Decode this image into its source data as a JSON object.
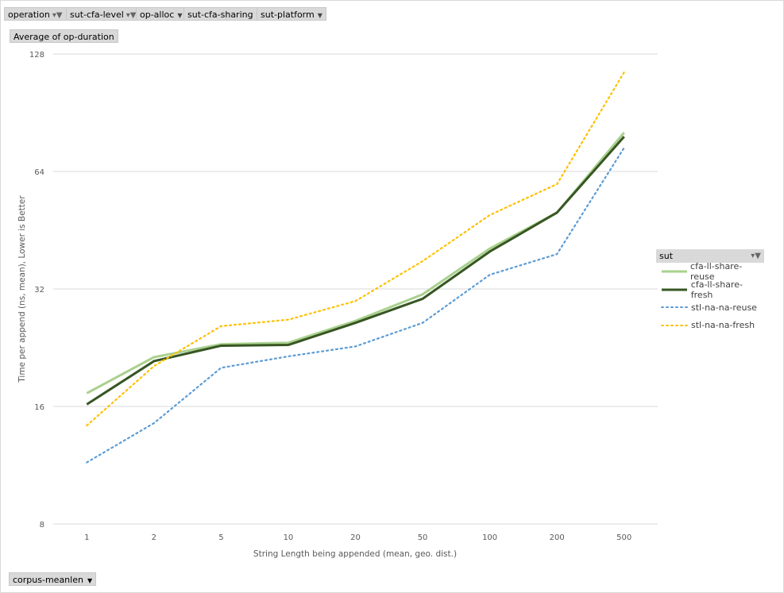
{
  "filters": [
    {
      "label": "operation",
      "filtered": true
    },
    {
      "label": "sut-cfa-level",
      "filtered": true
    },
    {
      "label": "op-alloc",
      "filtered": false
    },
    {
      "label": "sut-cfa-sharing",
      "filtered": false
    },
    {
      "label": "sut-platform",
      "filtered": false
    }
  ],
  "value_button": "Average of op-duration",
  "axis_button": "corpus-meanlen",
  "legend": {
    "title": "sut"
  },
  "chart_data": {
    "type": "line",
    "xlabel": "String Length  being appended (mean, geo. dist.)",
    "ylabel": "Time per append (ns, mean),   Lower is Better",
    "categories": [
      "1",
      "2",
      "5",
      "10",
      "20",
      "50",
      "100",
      "200",
      "500"
    ],
    "yscale": "log2",
    "ylim": [
      8,
      128
    ],
    "yticks": [
      8,
      16,
      32,
      64,
      128
    ],
    "grid": true,
    "legend_position": "right",
    "series": [
      {
        "name": "cfa-ll-share-reuse",
        "color": "#a9d18e",
        "style": "solid",
        "values": [
          17.3,
          21.4,
          23.1,
          23.3,
          26.5,
          31.0,
          40.6,
          50.2,
          80.5
        ]
      },
      {
        "name": "cfa-ll-share-fresh",
        "color": "#375623",
        "style": "solid",
        "values": [
          16.2,
          20.9,
          22.9,
          23.0,
          26.2,
          30.2,
          39.9,
          50.2,
          78.6
        ]
      },
      {
        "name": "stl-na-na-reuse",
        "color": "#5b9bd5",
        "style": "dotted",
        "values": [
          11.5,
          14.5,
          20.1,
          21.5,
          22.8,
          26.2,
          34.8,
          39.3,
          73.6
        ]
      },
      {
        "name": "stl-na-na-fresh",
        "color": "#ffc000",
        "style": "dotted",
        "values": [
          14.3,
          20.3,
          25.7,
          26.7,
          29.8,
          37.7,
          49.5,
          59.4,
          114.9
        ]
      }
    ]
  }
}
